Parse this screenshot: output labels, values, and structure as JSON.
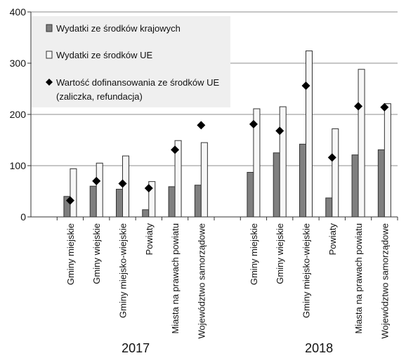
{
  "chart_data": {
    "type": "bar",
    "ylim": [
      0,
      400
    ],
    "yticks": [
      "0",
      "100",
      "200",
      "300",
      "400"
    ],
    "grid": true,
    "legend_position": "top-left",
    "groups": [
      {
        "label": "2017",
        "categories": [
          "Gminy miejskie",
          "Gminy wiejskie",
          "Gminy miejsko-wiejskie",
          "Powiaty",
          "Miasta na prawach powiatu",
          "Województwo samorządowe"
        ]
      },
      {
        "label": "2018",
        "categories": [
          "Gminy miejskie",
          "Gminy wiejskie",
          "Gminy miejsko-wiejskie",
          "Powiaty",
          "Miasta na prawach powiatu",
          "Województwo samorządowe"
        ]
      }
    ],
    "series": [
      {
        "name": "Wydatki ze środków krajowych",
        "kind": "bar",
        "color": "#7f7f7f",
        "values": [
          40,
          60,
          54,
          14,
          59,
          62,
          87,
          125,
          142,
          37,
          121,
          131
        ]
      },
      {
        "name": "Wydatki ze środków UE",
        "kind": "bar",
        "color": "#f7f7f7",
        "values": [
          94,
          105,
          119,
          69,
          149,
          145,
          211,
          215,
          324,
          172,
          288,
          221
        ]
      },
      {
        "name": "Wartość dofinansowania ze środków UE",
        "name_line2": "(zaliczka, refundacja)",
        "kind": "marker",
        "color": "#000000",
        "values": [
          32,
          70,
          65,
          56,
          131,
          179,
          181,
          168,
          256,
          116,
          216,
          214
        ]
      }
    ]
  }
}
